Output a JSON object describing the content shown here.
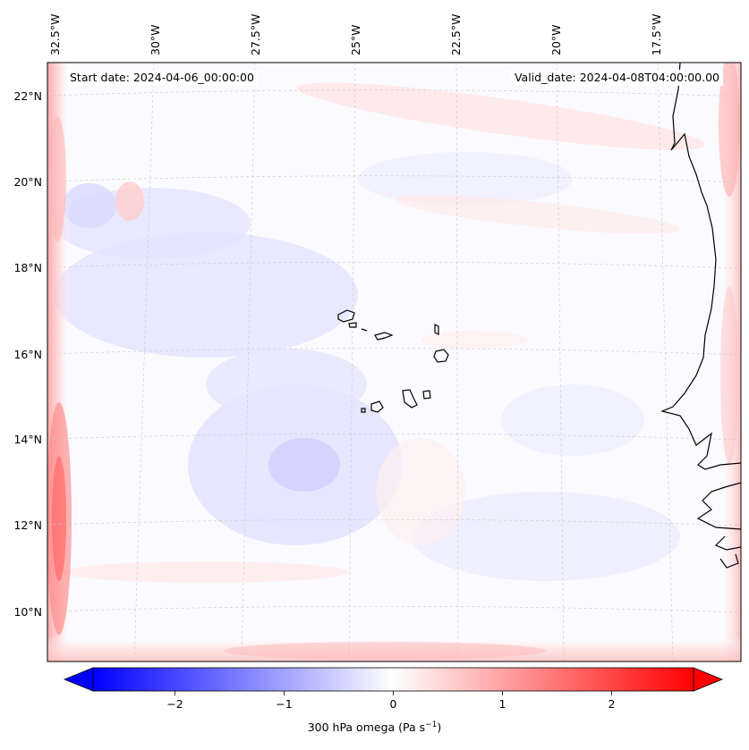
{
  "header": {
    "start_date": "Start date: 2024-04-06_00:00:00",
    "valid_date": "Valid_date: 2024-04-08T04:00:00.00"
  },
  "map": {
    "lon_labels": [
      "32.5°W",
      "30°W",
      "27.5°W",
      "25°W",
      "22.5°W",
      "20°W",
      "17.5°W"
    ],
    "lat_labels": [
      "22°N",
      "20°N",
      "18°N",
      "16°N",
      "14°N",
      "12°N",
      "10°N"
    ],
    "field": "300 hPa omega",
    "extent": {
      "lon": [
        -32.8,
        -16.4
      ],
      "lat": [
        8.9,
        22.8
      ]
    }
  },
  "colorbar": {
    "label_main": "300 hPa omega (Pa s",
    "label_exp": "−1",
    "label_close": ")",
    "ticks": [
      "−2",
      "−1",
      "0",
      "1",
      "2"
    ],
    "tick_values": [
      -2,
      -1,
      0,
      1,
      2
    ],
    "range": [
      -2.75,
      2.75
    ],
    "cmap": "bwr",
    "colors": {
      "min": "#0000ff",
      "mid": "#ffffff",
      "max": "#ff0000"
    }
  }
}
